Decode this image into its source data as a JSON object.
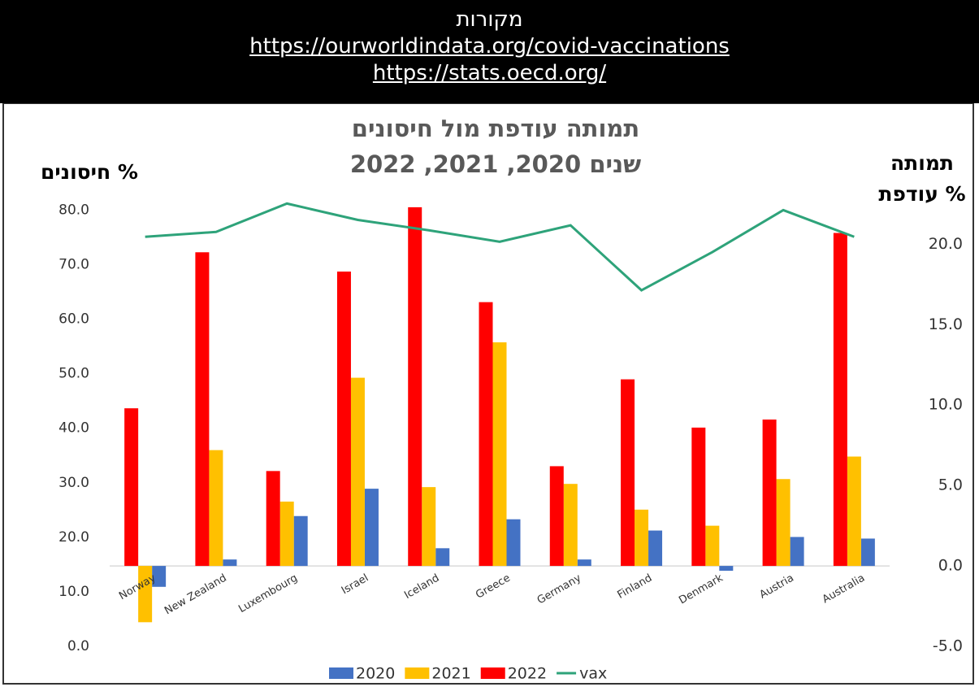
{
  "header": {
    "title": "מקורות",
    "links": [
      "https://ourworldindata.org/covid-vaccinations",
      "https://stats.oecd.org/"
    ]
  },
  "chart_data": {
    "type": "bar",
    "title": "תמותה עודפת מול חיסונים",
    "subtitle": "שנים 2020, 2021, 2022",
    "y_label": "חיסונים %",
    "y2_label": [
      "תמותה",
      "עודפת %"
    ],
    "categories": [
      "Norway",
      "New Zealand",
      "Luxembourg",
      "Israel",
      "Iceland",
      "Greece",
      "Germany",
      "Finland",
      "Denmark",
      "Austria",
      "Australia"
    ],
    "series": [
      {
        "name": "2020",
        "color": "#4472c4",
        "axis": "y2",
        "values": [
          -1.3,
          0.4,
          3.1,
          4.8,
          1.1,
          2.9,
          0.4,
          2.2,
          -0.3,
          1.8,
          1.7
        ]
      },
      {
        "name": "2021",
        "color": "#ffc000",
        "axis": "y2",
        "values": [
          -3.5,
          7.2,
          4.0,
          11.7,
          4.9,
          13.9,
          5.1,
          3.5,
          2.5,
          5.4,
          6.8
        ]
      },
      {
        "name": "2022",
        "color": "#ff0000",
        "axis": "y2",
        "values": [
          9.8,
          19.5,
          5.9,
          18.3,
          22.3,
          16.4,
          6.2,
          11.6,
          8.6,
          9.1,
          20.7
        ]
      },
      {
        "name": "vax",
        "color": "#2ea37a",
        "type": "line",
        "values": [
          75.1,
          76.0,
          81.2,
          78.2,
          76.3,
          74.2,
          77.2,
          65.3,
          72.3,
          80.0,
          75.1
        ]
      }
    ],
    "ylim": [
      0,
      82
    ],
    "yticks": [
      {
        "value": 0,
        "label": "0.0"
      },
      {
        "value": 10,
        "label": "10.0"
      },
      {
        "value": 20,
        "label": "20.0"
      },
      {
        "value": 30,
        "label": "30.0"
      },
      {
        "value": 40,
        "label": "40.0"
      },
      {
        "value": 50,
        "label": "50.0"
      },
      {
        "value": 60,
        "label": "60.0"
      },
      {
        "value": 70,
        "label": "70.0"
      },
      {
        "value": 80,
        "label": "80.0"
      }
    ],
    "y2lim": [
      -5,
      22.8
    ],
    "y2ticks": [
      {
        "value": -5,
        "label": "-5.0"
      },
      {
        "value": 0,
        "label": "0.0"
      },
      {
        "value": 5,
        "label": "5.0"
      },
      {
        "value": 10,
        "label": "10.0"
      },
      {
        "value": 15,
        "label": "15.0"
      },
      {
        "value": 20,
        "label": "20.0"
      }
    ],
    "grid": false
  }
}
